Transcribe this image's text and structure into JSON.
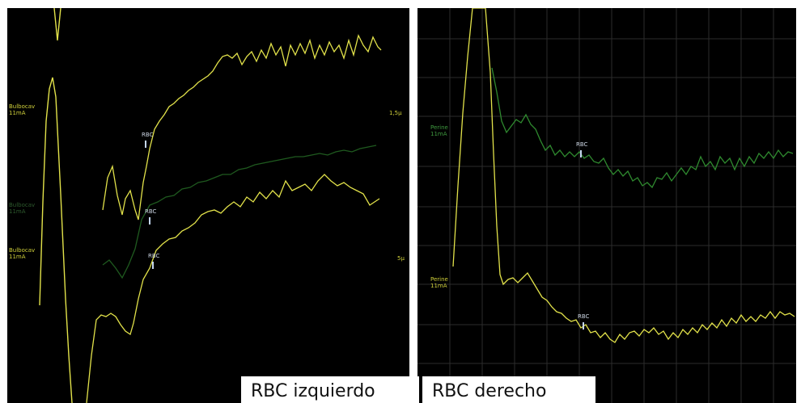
{
  "panels": {
    "left": {
      "caption": "RBC izquierdo",
      "channel_labels": {
        "top": "Bulbocav\n11mA",
        "mid": "Bulbocav\n11mA",
        "low": "Bulbocav\n11mA",
        "right_top": "1,5μ",
        "right_low": "5μ"
      },
      "markers": [
        "RBC",
        "RBC",
        "RBC"
      ]
    },
    "right": {
      "caption": "RBC derecho",
      "channel_labels": {
        "top": "Perine\n11mA",
        "low": "Perine\n11mA"
      },
      "markers": [
        "RBC",
        "RBC"
      ]
    }
  },
  "colors": {
    "trace_yellow": "#e2e24a",
    "trace_green": "#2f8a2f",
    "trace_green_faint": "#1f5a1f",
    "grid": "#2c2c2c",
    "marker": "#c4d6f0"
  }
}
